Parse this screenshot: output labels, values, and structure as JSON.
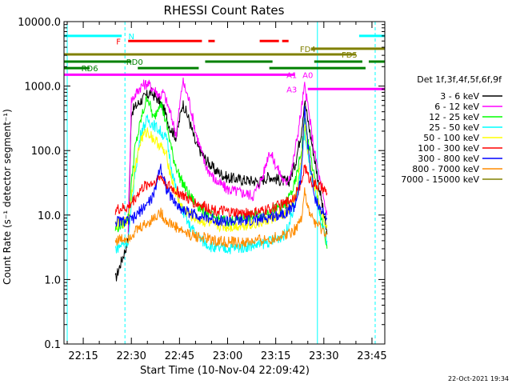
{
  "chart_data": {
    "type": "line",
    "title": "RHESSI Count Rates",
    "xlabel": "Start Time (10-Nov-04 22:09:42)",
    "ylabel": "Count Rate (s⁻¹ detector segment⁻¹)",
    "y_scale": "log",
    "ylim": [
      0.1,
      10000
    ],
    "xlim": [
      "22:09",
      "23:49"
    ],
    "y_ticks": [
      "0.1",
      "1.0",
      "10.0",
      "100.0",
      "1000.0",
      "10000.0"
    ],
    "x_ticks": [
      "22:15",
      "22:30",
      "22:45",
      "23:00",
      "23:15",
      "23:30",
      "23:45"
    ],
    "legend_title": "Det 1f,3f,4f,5f,6f,9f",
    "legend_position": "right",
    "timestamp": "22-Oct-2021 19:34",
    "series": [
      {
        "name": "3 - 6 keV",
        "color": "#000000",
        "points": [
          [
            "22:25",
            1.0
          ],
          [
            "22:27",
            2.0
          ],
          [
            "22:29",
            4.0
          ],
          [
            "22:30",
            400
          ],
          [
            "22:33",
            600
          ],
          [
            "22:36",
            800
          ],
          [
            "22:38",
            650
          ],
          [
            "22:40",
            450
          ],
          [
            "22:42",
            230
          ],
          [
            "22:44",
            160
          ],
          [
            "22:46",
            550
          ],
          [
            "22:48",
            300
          ],
          [
            "22:50",
            130
          ],
          [
            "22:53",
            75
          ],
          [
            "22:56",
            50
          ],
          [
            "23:00",
            38
          ],
          [
            "23:05",
            35
          ],
          [
            "23:10",
            33
          ],
          [
            "23:13",
            40
          ],
          [
            "23:16",
            35
          ],
          [
            "23:19",
            32
          ],
          [
            "23:21",
            60
          ],
          [
            "23:23",
            200
          ],
          [
            "23:24",
            600
          ],
          [
            "23:25",
            300
          ],
          [
            "23:27",
            80
          ],
          [
            "23:29",
            20
          ],
          [
            "23:31",
            5
          ]
        ]
      },
      {
        "name": "6 - 12 keV",
        "color": "#ff00ff",
        "points": [
          [
            "22:29",
            6
          ],
          [
            "22:30",
            600
          ],
          [
            "22:33",
            1000
          ],
          [
            "22:35",
            1100
          ],
          [
            "22:37",
            900
          ],
          [
            "22:39",
            700
          ],
          [
            "22:40",
            800
          ],
          [
            "22:42",
            400
          ],
          [
            "22:44",
            180
          ],
          [
            "22:46",
            1200
          ],
          [
            "22:48",
            600
          ],
          [
            "22:50",
            200
          ],
          [
            "22:53",
            60
          ],
          [
            "22:56",
            35
          ],
          [
            "23:00",
            25
          ],
          [
            "23:05",
            22
          ],
          [
            "23:08",
            20
          ],
          [
            "23:11",
            40
          ],
          [
            "23:13",
            100
          ],
          [
            "23:15",
            60
          ],
          [
            "23:18",
            30
          ],
          [
            "23:20",
            50
          ],
          [
            "23:22",
            200
          ],
          [
            "23:24",
            1000
          ],
          [
            "23:25",
            500
          ],
          [
            "23:27",
            100
          ],
          [
            "23:29",
            30
          ],
          [
            "23:31",
            10
          ]
        ]
      },
      {
        "name": "12 - 25 keV",
        "color": "#00ff00",
        "points": [
          [
            "22:25",
            6
          ],
          [
            "22:29",
            9
          ],
          [
            "22:31",
            100
          ],
          [
            "22:33",
            300
          ],
          [
            "22:35",
            700
          ],
          [
            "22:37",
            300
          ],
          [
            "22:39",
            600
          ],
          [
            "22:41",
            250
          ],
          [
            "22:43",
            80
          ],
          [
            "22:45",
            40
          ],
          [
            "22:48",
            20
          ],
          [
            "22:52",
            12
          ],
          [
            "22:56",
            9
          ],
          [
            "23:00",
            8
          ],
          [
            "23:05",
            9
          ],
          [
            "23:10",
            10
          ],
          [
            "23:14",
            12
          ],
          [
            "23:18",
            14
          ],
          [
            "23:21",
            30
          ],
          [
            "23:23",
            100
          ],
          [
            "23:24",
            300
          ],
          [
            "23:25",
            150
          ],
          [
            "23:27",
            40
          ],
          [
            "23:29",
            10
          ],
          [
            "23:31",
            3
          ]
        ]
      },
      {
        "name": "25 - 50 keV",
        "color": "#00ffff",
        "points": [
          [
            "22:25",
            3
          ],
          [
            "22:29",
            4
          ],
          [
            "22:31",
            40
          ],
          [
            "22:33",
            200
          ],
          [
            "22:35",
            300
          ],
          [
            "22:37",
            250
          ],
          [
            "22:39",
            200
          ],
          [
            "22:41",
            150
          ],
          [
            "22:43",
            40
          ],
          [
            "22:45",
            15
          ],
          [
            "22:48",
            7
          ],
          [
            "22:52",
            4
          ],
          [
            "22:56",
            3
          ],
          [
            "23:00",
            3
          ],
          [
            "23:05",
            3.2
          ],
          [
            "23:10",
            3.5
          ],
          [
            "23:14",
            4
          ],
          [
            "23:18",
            5
          ],
          [
            "23:21",
            15
          ],
          [
            "23:23",
            60
          ],
          [
            "23:24",
            200
          ],
          [
            "23:25",
            80
          ],
          [
            "23:27",
            25
          ],
          [
            "23:29",
            8
          ],
          [
            "23:31",
            4
          ]
        ]
      },
      {
        "name": "50 - 100 keV",
        "color": "#ffff00",
        "points": [
          [
            "22:25",
            7
          ],
          [
            "22:29",
            8
          ],
          [
            "22:31",
            50
          ],
          [
            "22:33",
            150
          ],
          [
            "22:35",
            200
          ],
          [
            "22:37",
            150
          ],
          [
            "22:39",
            120
          ],
          [
            "22:41",
            80
          ],
          [
            "22:43",
            30
          ],
          [
            "22:45",
            15
          ],
          [
            "22:48",
            10
          ],
          [
            "22:52",
            8
          ],
          [
            "22:56",
            7
          ],
          [
            "23:00",
            6.5
          ],
          [
            "23:05",
            7
          ],
          [
            "23:10",
            7.5
          ],
          [
            "23:14",
            9
          ],
          [
            "23:18",
            10
          ],
          [
            "23:21",
            18
          ],
          [
            "23:23",
            70
          ],
          [
            "23:24",
            250
          ],
          [
            "23:25",
            100
          ],
          [
            "23:27",
            30
          ],
          [
            "23:29",
            12
          ],
          [
            "23:31",
            7
          ]
        ]
      },
      {
        "name": "100 - 300 keV",
        "color": "#ff0000",
        "points": [
          [
            "22:25",
            12
          ],
          [
            "22:29",
            13
          ],
          [
            "22:31",
            18
          ],
          [
            "22:33",
            25
          ],
          [
            "22:35",
            30
          ],
          [
            "22:37",
            32
          ],
          [
            "22:39",
            40
          ],
          [
            "22:41",
            30
          ],
          [
            "22:43",
            25
          ],
          [
            "22:45",
            22
          ],
          [
            "22:48",
            17
          ],
          [
            "22:52",
            14
          ],
          [
            "22:56",
            12
          ],
          [
            "23:00",
            11
          ],
          [
            "23:05",
            10.5
          ],
          [
            "23:10",
            11
          ],
          [
            "23:14",
            13
          ],
          [
            "23:18",
            15
          ],
          [
            "23:21",
            20
          ],
          [
            "23:23",
            30
          ],
          [
            "23:24",
            60
          ],
          [
            "23:25",
            40
          ],
          [
            "23:27",
            30
          ],
          [
            "23:29",
            27
          ],
          [
            "23:31",
            22
          ]
        ]
      },
      {
        "name": "300 - 800 keV",
        "color": "#0000ff",
        "points": [
          [
            "22:25",
            8
          ],
          [
            "22:29",
            8
          ],
          [
            "22:31",
            9
          ],
          [
            "22:33",
            12
          ],
          [
            "22:35",
            15
          ],
          [
            "22:37",
            20
          ],
          [
            "22:39",
            60
          ],
          [
            "22:41",
            25
          ],
          [
            "22:43",
            17
          ],
          [
            "22:45",
            13
          ],
          [
            "22:48",
            11
          ],
          [
            "22:52",
            9.5
          ],
          [
            "22:56",
            8.5
          ],
          [
            "23:00",
            8
          ],
          [
            "23:05",
            8
          ],
          [
            "23:10",
            8.5
          ],
          [
            "23:14",
            9.5
          ],
          [
            "23:18",
            11
          ],
          [
            "23:21",
            14
          ],
          [
            "23:23",
            40
          ],
          [
            "23:24",
            500
          ],
          [
            "23:25",
            120
          ],
          [
            "23:27",
            20
          ],
          [
            "23:29",
            12
          ],
          [
            "23:31",
            9
          ]
        ]
      },
      {
        "name": "800 - 7000 keV",
        "color": "#ff8c00",
        "points": [
          [
            "22:25",
            4
          ],
          [
            "22:29",
            4.5
          ],
          [
            "22:31",
            5.5
          ],
          [
            "22:33",
            6.5
          ],
          [
            "22:35",
            7.5
          ],
          [
            "22:37",
            9
          ],
          [
            "22:39",
            11
          ],
          [
            "22:41",
            8
          ],
          [
            "22:43",
            7
          ],
          [
            "22:45",
            6
          ],
          [
            "22:48",
            5
          ],
          [
            "22:52",
            4.5
          ],
          [
            "22:56",
            4
          ],
          [
            "23:00",
            3.8
          ],
          [
            "23:05",
            3.7
          ],
          [
            "23:10",
            4
          ],
          [
            "23:14",
            4.3
          ],
          [
            "23:18",
            5
          ],
          [
            "23:21",
            6
          ],
          [
            "23:23",
            9
          ],
          [
            "23:24",
            25
          ],
          [
            "23:25",
            12
          ],
          [
            "23:27",
            8
          ],
          [
            "23:29",
            6
          ],
          [
            "23:31",
            5
          ]
        ]
      },
      {
        "name": "7000 - 15000 keV",
        "color": "#808000",
        "points": []
      }
    ],
    "attenuator_bars": [
      {
        "name": "N",
        "color": "#00ffff",
        "y": 6000,
        "segments": [
          [
            "22:09",
            "22:27"
          ],
          [
            "23:41",
            "23:49"
          ]
        ],
        "label_x": "22:30"
      },
      {
        "name": "F",
        "color": "#ff0000",
        "y": 5000,
        "segments": [
          [
            "22:29",
            "22:52"
          ],
          [
            "22:54",
            "22:56"
          ],
          [
            "23:10",
            "23:16"
          ],
          [
            "23:17",
            "23:19"
          ]
        ],
        "label_x": "22:26"
      },
      {
        "name": "FD4",
        "color": "#808000",
        "y": 3800,
        "segments": [
          [
            "23:26",
            "23:49"
          ]
        ],
        "label_x": "23:25"
      },
      {
        "name": "FD5",
        "color": "#808000",
        "y": 3100,
        "segments": [
          [
            "22:09",
            "23:40"
          ]
        ],
        "label_x": "23:38"
      },
      {
        "name": "RD0",
        "color": "#008000",
        "y": 2400,
        "segments": [
          [
            "22:09",
            "22:30"
          ],
          [
            "22:53",
            "23:14"
          ],
          [
            "23:27",
            "23:42"
          ],
          [
            "23:44",
            "23:49"
          ]
        ],
        "label_x": "22:31"
      },
      {
        "name": "RD6",
        "color": "#008000",
        "y": 1900,
        "segments": [
          [
            "22:09",
            "22:17"
          ],
          [
            "22:32",
            "22:51"
          ],
          [
            "23:13",
            "23:43"
          ]
        ],
        "label_x": "22:17"
      },
      {
        "name": "A1",
        "color": "#ff00ff",
        "y": 1500,
        "segments": [
          [
            "22:09",
            "23:21"
          ]
        ],
        "label_x": "23:20"
      },
      {
        "name": "A0",
        "color": "#ff00ff",
        "y": 1500,
        "segments": [],
        "label_x": "23:25"
      },
      {
        "name": "A3",
        "color": "#ff00ff",
        "y": 900,
        "segments": [
          [
            "23:25",
            "23:49"
          ]
        ],
        "label_x": "23:20"
      }
    ],
    "vertical_lines": [
      {
        "time": "22:10",
        "color": "#00ffff",
        "style": "solid"
      },
      {
        "time": "22:28",
        "color": "#00ffff",
        "style": "dashed"
      },
      {
        "time": "23:28",
        "color": "#00ffff",
        "style": "solid"
      },
      {
        "time": "23:46",
        "color": "#00ffff",
        "style": "dashed"
      }
    ]
  }
}
